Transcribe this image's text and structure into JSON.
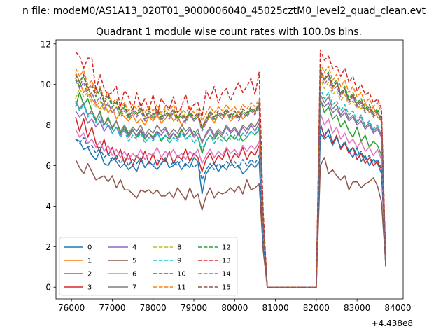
{
  "suptitle": "n file: modeM0/AS1A13_020T01_9000006040_45025cztM0_level2_quad_clean.evt",
  "chart_data": {
    "type": "line",
    "title": "Quadrant 1 module wise count rates with 100.0s bins.",
    "xlabel": "",
    "ylabel": "",
    "x_offset_label": "+4.438e8",
    "xlim": [
      75620,
      84130
    ],
    "ylim": [
      -0.58,
      12.2
    ],
    "x_ticks": [
      76000,
      77000,
      78000,
      79000,
      80000,
      81000,
      82000,
      83000,
      84000
    ],
    "y_ticks": [
      0,
      2,
      4,
      6,
      8,
      10,
      12
    ],
    "grid": false,
    "legend_placement": "lower-left",
    "legend_columns": 4,
    "x_segments": [
      {
        "start": 76100,
        "end": 80600,
        "step": 100
      },
      {
        "start": 80700,
        "end": 82000,
        "step": 100
      },
      {
        "start": 82100,
        "end": 83700,
        "step": 100
      }
    ],
    "series": [
      {
        "name": "0",
        "color": "#1f77b4",
        "dash": "solid",
        "seg1": [
          7.3,
          7.2,
          6.8,
          6.9,
          6.5,
          6.3,
          6.7,
          6.1,
          6.0,
          6.4,
          6.2,
          5.9,
          6.1,
          5.8,
          6.0,
          5.7,
          6.3,
          5.9,
          6.2,
          6.0,
          5.8,
          6.1,
          6.3,
          5.9,
          6.0,
          6.2,
          5.8,
          6.1,
          5.9,
          6.4,
          6.2,
          4.6,
          5.6,
          5.9,
          6.1,
          5.7,
          6.0,
          5.8,
          6.2,
          5.9,
          6.0,
          5.6,
          5.8,
          6.1,
          5.9,
          6.2
        ],
        "seg3": [
          7.6,
          7.3,
          7.5,
          7.0,
          7.4,
          6.9,
          7.1,
          6.7,
          6.4,
          6.9,
          6.2,
          6.5,
          6.0,
          6.3,
          6.1,
          5.6,
          5.9
        ]
      },
      {
        "name": "1",
        "color": "#ff7f0e",
        "dash": "solid",
        "seg1": [
          10.6,
          10.1,
          9.6,
          9.9,
          9.3,
          9.0,
          8.8,
          9.1,
          8.6,
          8.9,
          8.3,
          8.6,
          8.4,
          8.2,
          8.5,
          8.1,
          8.3,
          8.0,
          8.4,
          8.2,
          8.5,
          8.1,
          8.3,
          8.6,
          8.2,
          8.4,
          8.0,
          8.3,
          8.5,
          8.2,
          8.4,
          7.8,
          8.2,
          8.4,
          8.1,
          8.5,
          8.3,
          8.6,
          8.2,
          8.4,
          8.7,
          8.3,
          8.5,
          8.8,
          8.6,
          9.0
        ],
        "seg3": [
          10.6,
          10.2,
          10.5,
          9.8,
          10.1,
          9.5,
          9.8,
          9.2,
          9.4,
          9.0,
          8.8,
          9.1,
          8.6,
          8.9,
          8.4,
          8.2,
          8.6
        ]
      },
      {
        "name": "2",
        "color": "#2ca02c",
        "dash": "solid",
        "seg1": [
          8.9,
          9.6,
          9.0,
          9.3,
          8.7,
          8.2,
          8.7,
          8.0,
          8.4,
          7.8,
          8.2,
          7.6,
          7.9,
          7.5,
          7.8,
          7.4,
          7.7,
          7.3,
          7.6,
          7.4,
          7.7,
          7.2,
          7.5,
          7.3,
          7.6,
          7.4,
          7.8,
          7.3,
          7.5,
          7.7,
          7.4,
          6.6,
          7.2,
          7.5,
          7.3,
          7.6,
          7.4,
          7.2,
          7.5,
          7.3,
          7.6,
          7.2,
          7.4,
          7.7,
          7.5,
          7.8
        ],
        "seg3": [
          9.3,
          8.6,
          8.9,
          8.3,
          8.5,
          7.9,
          8.2,
          7.7,
          7.4,
          7.9,
          7.2,
          7.5,
          6.9,
          7.2,
          7.0,
          6.5,
          7.0
        ]
      },
      {
        "name": "3",
        "color": "#d62728",
        "dash": "solid",
        "seg1": [
          8.4,
          7.7,
          8.3,
          7.4,
          7.9,
          7.1,
          6.7,
          7.3,
          6.5,
          6.9,
          6.3,
          6.8,
          6.1,
          6.6,
          6.0,
          6.5,
          6.2,
          6.7,
          6.1,
          6.6,
          6.0,
          6.4,
          6.2,
          6.7,
          6.1,
          6.5,
          6.3,
          6.8,
          6.2,
          6.6,
          6.4,
          5.7,
          6.3,
          6.6,
          6.1,
          6.5,
          6.3,
          6.8,
          6.2,
          6.6,
          6.4,
          6.9,
          6.3,
          6.7,
          6.5,
          7.0
        ],
        "seg3": [
          8.1,
          7.4,
          7.8,
          7.1,
          7.5,
          6.8,
          7.1,
          6.6,
          6.9,
          6.3,
          6.6,
          6.1,
          6.4,
          6.0,
          6.2,
          5.8,
          6.2
        ]
      },
      {
        "name": "4",
        "color": "#9467bd",
        "dash": "solid",
        "seg1": [
          8.7,
          8.4,
          8.6,
          8.1,
          8.3,
          7.9,
          8.2,
          7.7,
          8.0,
          7.6,
          7.9,
          7.5,
          7.8,
          7.4,
          7.7,
          7.5,
          7.8,
          7.4,
          7.6,
          7.3,
          7.7,
          7.5,
          7.8,
          7.4,
          7.6,
          7.3,
          7.7,
          7.5,
          7.8,
          7.4,
          7.6,
          7.2,
          7.5,
          7.8,
          7.4,
          7.7,
          7.5,
          7.9,
          7.6,
          7.8,
          7.5,
          7.9,
          7.6,
          8.0,
          7.7,
          8.1
        ],
        "seg3": [
          9.2,
          8.9,
          9.1,
          8.6,
          8.8,
          8.4,
          8.6,
          8.2,
          8.4,
          8.0,
          8.2,
          7.8,
          8.0,
          7.6,
          7.8,
          7.4,
          7.7
        ]
      },
      {
        "name": "5",
        "color": "#8c564b",
        "dash": "solid",
        "seg1": [
          6.3,
          5.9,
          5.6,
          6.1,
          5.7,
          5.3,
          5.4,
          5.5,
          5.2,
          5.5,
          4.9,
          5.3,
          4.8,
          4.8,
          4.6,
          4.4,
          4.8,
          4.7,
          4.8,
          4.6,
          4.8,
          4.5,
          4.5,
          4.7,
          4.4,
          4.9,
          4.6,
          4.3,
          4.9,
          4.4,
          4.6,
          3.8,
          4.5,
          4.9,
          4.4,
          4.7,
          4.6,
          4.7,
          4.9,
          4.7,
          5.0,
          4.6,
          5.3,
          4.8,
          4.9,
          5.1
        ],
        "seg3": [
          6.0,
          6.4,
          5.6,
          5.8,
          5.5,
          5.3,
          5.5,
          4.8,
          5.2,
          5.2,
          4.9,
          5.1,
          5.2,
          5.4,
          5.0,
          4.2,
          5.1
        ]
      },
      {
        "name": "6",
        "color": "#e377c2",
        "dash": "solid",
        "seg1": [
          7.8,
          7.4,
          7.6,
          7.1,
          7.3,
          6.9,
          7.2,
          6.7,
          7.0,
          6.5,
          6.8,
          6.4,
          6.7,
          6.3,
          6.6,
          6.4,
          6.8,
          6.3,
          6.6,
          6.5,
          6.9,
          6.4,
          6.7,
          6.5,
          6.8,
          6.4,
          6.6,
          6.3,
          6.7,
          6.5,
          6.8,
          6.1,
          6.5,
          6.8,
          6.4,
          6.7,
          6.5,
          6.9,
          6.6,
          6.8,
          6.5,
          7.0,
          6.7,
          7.0,
          6.8,
          7.2
        ],
        "seg3": [
          8.6,
          8.0,
          8.3,
          7.6,
          7.9,
          7.3,
          7.6,
          7.1,
          7.3,
          6.9,
          7.2,
          6.7,
          6.9,
          6.5,
          6.8,
          6.3,
          6.8
        ]
      },
      {
        "name": "7",
        "color": "#7f7f7f",
        "dash": "solid",
        "seg1": [
          9.2,
          8.8,
          9.1,
          8.5,
          8.7,
          8.3,
          8.6,
          8.0,
          8.3,
          7.9,
          8.2,
          7.7,
          8.0,
          7.6,
          7.9,
          7.7,
          8.0,
          7.5,
          7.8,
          7.6,
          8.0,
          7.7,
          7.9,
          7.5,
          7.8,
          7.6,
          8.0,
          7.7,
          7.9,
          7.5,
          7.8,
          7.1,
          7.6,
          7.9,
          7.5,
          7.8,
          7.6,
          8.0,
          7.7,
          7.9,
          7.6,
          8.0,
          7.8,
          8.1,
          7.9,
          8.3
        ],
        "seg3": [
          9.5,
          9.1,
          9.4,
          8.8,
          9.0,
          8.5,
          8.8,
          8.3,
          8.5,
          8.1,
          8.4,
          7.9,
          8.1,
          7.7,
          7.9,
          7.5,
          7.9
        ]
      },
      {
        "name": "8",
        "color": "#bcbd22",
        "dash": "dashed",
        "seg1": [
          9.3,
          9.8,
          9.4,
          9.6,
          9.1,
          8.9,
          9.2,
          8.7,
          9.0,
          8.6,
          8.9,
          8.5,
          8.8,
          8.4,
          8.7,
          8.5,
          8.8,
          8.4,
          8.6,
          8.3,
          8.7,
          8.5,
          8.8,
          8.4,
          8.6,
          8.3,
          8.7,
          8.4,
          8.6,
          8.3,
          8.5,
          7.9,
          8.3,
          8.6,
          8.3,
          8.6,
          8.4,
          8.7,
          8.4,
          8.6,
          8.3,
          8.7,
          8.5,
          8.8,
          8.6,
          9.0
        ],
        "seg3": [
          10.3,
          9.8,
          10.1,
          9.5,
          9.7,
          9.2,
          9.5,
          9.0,
          9.2,
          8.8,
          9.0,
          8.6,
          8.8,
          8.4,
          8.6,
          8.2,
          8.6
        ]
      },
      {
        "name": "9",
        "color": "#17becf",
        "dash": "dashed",
        "seg1": [
          9.1,
          8.7,
          9.0,
          8.4,
          8.6,
          8.1,
          8.4,
          7.9,
          8.1,
          7.6,
          7.9,
          7.4,
          7.7,
          7.2,
          7.5,
          7.3,
          7.6,
          7.1,
          7.4,
          7.2,
          7.6,
          7.3,
          7.5,
          7.1,
          7.4,
          7.2,
          7.6,
          7.3,
          7.5,
          7.1,
          7.4,
          6.8,
          7.2,
          7.5,
          7.1,
          7.4,
          7.2,
          7.6,
          7.3,
          7.5,
          7.2,
          7.6,
          7.4,
          7.7,
          7.5,
          7.9
        ],
        "seg3": [
          9.8,
          9.3,
          9.6,
          9.0,
          9.2,
          8.7,
          9.0,
          8.5,
          8.7,
          8.2,
          8.5,
          8.0,
          8.2,
          7.8,
          8.0,
          7.5,
          7.9
        ]
      },
      {
        "name": "10",
        "color": "#1f77b4",
        "dash": "dashed",
        "seg1": [
          7.3,
          7.1,
          7.4,
          6.9,
          7.0,
          6.6,
          6.9,
          6.4,
          6.6,
          6.2,
          6.5,
          6.1,
          6.4,
          6.0,
          6.3,
          6.1,
          6.4,
          5.9,
          6.2,
          6.0,
          6.3,
          6.1,
          6.4,
          5.9,
          6.2,
          6.0,
          6.3,
          6.0,
          6.2,
          5.9,
          6.1,
          5.3,
          5.8,
          6.1,
          5.8,
          6.1,
          5.9,
          6.2,
          6.0,
          6.2,
          5.9,
          6.3,
          6.0,
          6.3,
          6.1,
          6.5
        ],
        "seg3": [
          7.9,
          7.5,
          7.8,
          7.2,
          7.4,
          6.9,
          7.2,
          6.7,
          6.9,
          6.5,
          6.7,
          6.3,
          6.5,
          6.1,
          6.3,
          5.9,
          6.2
        ]
      },
      {
        "name": "11",
        "color": "#ff7f0e",
        "dash": "dashed",
        "seg1": [
          10.8,
          10.4,
          10.7,
          10.0,
          10.2,
          9.6,
          9.9,
          9.3,
          9.6,
          9.1,
          9.3,
          8.9,
          9.1,
          8.7,
          9.0,
          8.8,
          9.1,
          8.6,
          8.9,
          8.7,
          9.0,
          8.6,
          8.9,
          8.7,
          9.0,
          8.6,
          8.8,
          8.6,
          8.9,
          8.6,
          8.8,
          8.2,
          8.6,
          8.9,
          8.6,
          8.9,
          8.7,
          9.0,
          8.7,
          8.9,
          8.6,
          9.0,
          8.8,
          9.1,
          8.9,
          9.3
        ],
        "seg3": [
          11.0,
          10.6,
          10.9,
          10.2,
          10.5,
          9.9,
          10.2,
          9.6,
          9.9,
          9.4,
          9.6,
          9.1,
          9.3,
          8.9,
          9.1,
          8.6,
          9.0
        ]
      },
      {
        "name": "12",
        "color": "#2ca02c",
        "dash": "dashed",
        "seg1": [
          10.3,
          9.9,
          10.4,
          9.7,
          9.9,
          9.4,
          9.7,
          9.1,
          9.4,
          8.9,
          9.1,
          8.6,
          8.9,
          8.4,
          8.7,
          8.5,
          8.8,
          8.3,
          8.6,
          8.4,
          8.7,
          8.3,
          8.6,
          8.4,
          8.7,
          8.3,
          8.5,
          8.2,
          8.6,
          8.3,
          8.5,
          7.8,
          8.2,
          8.6,
          8.3,
          8.6,
          8.4,
          8.7,
          8.4,
          8.6,
          8.3,
          8.7,
          8.5,
          8.8,
          8.6,
          9.0
        ],
        "seg3": [
          10.8,
          10.3,
          10.6,
          10.0,
          10.2,
          9.6,
          9.9,
          9.3,
          9.6,
          9.1,
          9.3,
          8.8,
          9.0,
          8.6,
          8.8,
          8.3,
          8.7
        ]
      },
      {
        "name": "13",
        "color": "#d62728",
        "dash": "dashed",
        "seg1": [
          11.6,
          11.4,
          10.8,
          11.3,
          11.3,
          9.7,
          10.5,
          9.8,
          9.5,
          9.6,
          9.9,
          8.9,
          9.7,
          9.4,
          8.7,
          9.6,
          8.9,
          9.3,
          8.7,
          9.5,
          8.5,
          9.3,
          9.0,
          8.8,
          9.4,
          8.6,
          8.9,
          9.5,
          8.7,
          9.0,
          9.1,
          8.4,
          9.7,
          9.3,
          9.9,
          9.1,
          9.6,
          9.8,
          9.2,
          9.7,
          10.1,
          9.6,
          9.9,
          10.3,
          9.5,
          10.6
        ],
        "seg3": [
          11.7,
          11.2,
          11.4,
          10.8,
          10.9,
          10.4,
          10.8,
          10.1,
          10.4,
          9.7,
          10.0,
          9.5,
          9.6,
          9.1,
          9.3,
          8.8,
          9.3
        ]
      },
      {
        "name": "14",
        "color": "#9467bd",
        "dash": "dashed",
        "seg1": [
          10.2,
          9.8,
          10.1,
          9.4,
          9.6,
          9.1,
          9.4,
          8.8,
          9.1,
          8.6,
          8.9,
          8.4,
          8.7,
          8.3,
          8.6,
          8.4,
          8.7,
          8.2,
          8.5,
          8.3,
          8.6,
          8.2,
          8.5,
          8.3,
          8.6,
          8.2,
          8.4,
          8.1,
          8.5,
          8.2,
          8.4,
          7.7,
          8.1,
          8.5,
          8.2,
          8.5,
          8.3,
          8.6,
          8.3,
          8.5,
          8.2,
          8.6,
          8.4,
          8.7,
          8.5,
          8.9
        ],
        "seg3": [
          10.5,
          10.0,
          10.3,
          9.7,
          9.9,
          9.4,
          9.7,
          9.1,
          9.4,
          8.9,
          9.1,
          8.6,
          8.8,
          8.4,
          8.6,
          8.1,
          8.5
        ]
      },
      {
        "name": "15",
        "color": "#8c564b",
        "dash": "dashed",
        "seg1": [
          10.5,
          10.1,
          10.5,
          9.8,
          10.0,
          9.5,
          9.8,
          9.2,
          9.5,
          9.0,
          9.2,
          8.7,
          9.0,
          8.5,
          8.8,
          8.6,
          8.9,
          8.4,
          8.7,
          8.5,
          8.8,
          8.4,
          8.7,
          8.5,
          8.8,
          8.4,
          8.6,
          8.3,
          8.7,
          8.4,
          8.6,
          7.9,
          8.3,
          8.7,
          8.4,
          8.7,
          8.5,
          8.8,
          8.5,
          8.7,
          8.4,
          8.8,
          8.6,
          8.9,
          8.7,
          9.1
        ],
        "seg3": [
          10.7,
          10.2,
          10.5,
          9.9,
          10.1,
          9.5,
          9.8,
          9.2,
          9.5,
          9.0,
          9.2,
          8.7,
          8.9,
          8.5,
          8.7,
          8.2,
          8.6
        ]
      }
    ],
    "tail_end": [
      1.6,
      1.3,
      1.5,
      1.4,
      1.5,
      1.2,
      1.4,
      1.5,
      1.6,
      1.5,
      1.7,
      1.4,
      1.5,
      1.6,
      1.3,
      1.0
    ]
  }
}
